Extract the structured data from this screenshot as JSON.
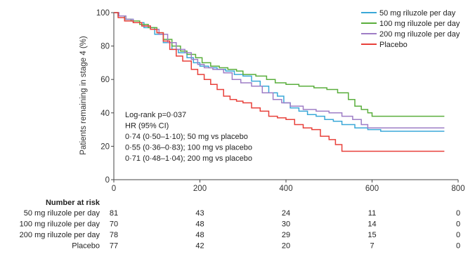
{
  "chart_data": {
    "type": "line",
    "step": true,
    "xlabel": "",
    "ylabel": "Patients remaining in stage 4 (%)",
    "xlim": [
      0,
      800
    ],
    "ylim": [
      0,
      100
    ],
    "xticks": [
      0,
      200,
      400,
      600,
      800
    ],
    "yticks": [
      0,
      20,
      40,
      60,
      80,
      100
    ],
    "legend_position": "top-right",
    "series": [
      {
        "name": "50 mg riluzole per day",
        "color": "#3aa8d8",
        "points": [
          [
            0,
            100
          ],
          [
            10,
            98
          ],
          [
            25,
            96
          ],
          [
            45,
            94
          ],
          [
            70,
            91
          ],
          [
            95,
            87
          ],
          [
            115,
            82
          ],
          [
            135,
            78
          ],
          [
            150,
            76
          ],
          [
            170,
            73
          ],
          [
            185,
            70
          ],
          [
            200,
            68
          ],
          [
            220,
            67
          ],
          [
            240,
            66
          ],
          [
            260,
            65
          ],
          [
            280,
            63
          ],
          [
            300,
            62
          ],
          [
            320,
            59
          ],
          [
            340,
            56
          ],
          [
            360,
            52
          ],
          [
            380,
            50
          ],
          [
            395,
            46
          ],
          [
            410,
            43
          ],
          [
            430,
            41
          ],
          [
            450,
            39
          ],
          [
            470,
            38
          ],
          [
            490,
            36
          ],
          [
            510,
            35
          ],
          [
            530,
            33
          ],
          [
            560,
            31
          ],
          [
            590,
            30
          ],
          [
            620,
            29
          ],
          [
            640,
            29
          ],
          [
            768,
            29
          ]
        ]
      },
      {
        "name": "100 mg riluzole per day",
        "color": "#5aae3c",
        "points": [
          [
            0,
            100
          ],
          [
            10,
            98
          ],
          [
            25,
            96
          ],
          [
            40,
            95
          ],
          [
            60,
            93
          ],
          [
            80,
            91
          ],
          [
            100,
            88
          ],
          [
            115,
            84
          ],
          [
            135,
            80
          ],
          [
            155,
            77
          ],
          [
            170,
            75
          ],
          [
            190,
            73
          ],
          [
            205,
            70
          ],
          [
            225,
            68
          ],
          [
            245,
            67
          ],
          [
            265,
            66
          ],
          [
            285,
            65
          ],
          [
            300,
            63
          ],
          [
            330,
            62
          ],
          [
            355,
            60
          ],
          [
            375,
            58
          ],
          [
            400,
            57
          ],
          [
            430,
            56
          ],
          [
            465,
            55
          ],
          [
            495,
            54
          ],
          [
            520,
            52
          ],
          [
            545,
            48
          ],
          [
            560,
            44
          ],
          [
            575,
            42
          ],
          [
            590,
            40
          ],
          [
            600,
            38
          ],
          [
            768,
            38
          ]
        ]
      },
      {
        "name": "200 mg riluzole per day",
        "color": "#9e7dc6",
        "points": [
          [
            0,
            100
          ],
          [
            12,
            98
          ],
          [
            28,
            96
          ],
          [
            45,
            94
          ],
          [
            65,
            92
          ],
          [
            85,
            90
          ],
          [
            105,
            87
          ],
          [
            125,
            82
          ],
          [
            145,
            78
          ],
          [
            165,
            76
          ],
          [
            180,
            72
          ],
          [
            195,
            69
          ],
          [
            210,
            67
          ],
          [
            230,
            66
          ],
          [
            255,
            64
          ],
          [
            275,
            60
          ],
          [
            295,
            58
          ],
          [
            320,
            56
          ],
          [
            345,
            52
          ],
          [
            370,
            48
          ],
          [
            390,
            46
          ],
          [
            410,
            44
          ],
          [
            440,
            42
          ],
          [
            470,
            41
          ],
          [
            500,
            40
          ],
          [
            530,
            38
          ],
          [
            555,
            36
          ],
          [
            575,
            33
          ],
          [
            590,
            31
          ],
          [
            768,
            31
          ]
        ]
      },
      {
        "name": "Placebo",
        "color": "#e8403a",
        "points": [
          [
            0,
            100
          ],
          [
            10,
            97
          ],
          [
            25,
            95
          ],
          [
            45,
            94
          ],
          [
            65,
            92
          ],
          [
            85,
            90
          ],
          [
            100,
            88
          ],
          [
            115,
            83
          ],
          [
            130,
            78
          ],
          [
            145,
            74
          ],
          [
            160,
            71
          ],
          [
            180,
            66
          ],
          [
            195,
            63
          ],
          [
            210,
            60
          ],
          [
            225,
            57
          ],
          [
            240,
            54
          ],
          [
            255,
            50
          ],
          [
            270,
            48
          ],
          [
            285,
            47
          ],
          [
            300,
            46
          ],
          [
            320,
            43
          ],
          [
            340,
            41
          ],
          [
            360,
            38
          ],
          [
            380,
            37
          ],
          [
            400,
            36
          ],
          [
            420,
            33
          ],
          [
            440,
            31
          ],
          [
            460,
            30
          ],
          [
            480,
            26
          ],
          [
            500,
            24
          ],
          [
            515,
            21
          ],
          [
            530,
            17
          ],
          [
            768,
            17
          ]
        ]
      }
    ],
    "annotations": [
      "Log-rank p=0·037",
      "HR (95% CI)",
      "0·74 (0·50–1·10); 50 mg vs placebo",
      "0·55 (0·36–0·83); 100 mg vs placebo",
      "0·71 (0·48–1·04); 200 mg vs placebo"
    ],
    "risk_table": {
      "title": "Number at risk",
      "times": [
        0,
        200,
        400,
        600,
        800
      ],
      "rows": [
        {
          "label": "50 mg riluzole per day",
          "values": [
            "81",
            "43",
            "24",
            "11",
            "0"
          ]
        },
        {
          "label": "100 mg riluzole per day",
          "values": [
            "70",
            "48",
            "30",
            "14",
            "0"
          ]
        },
        {
          "label": "200 mg riluzole per day",
          "values": [
            "78",
            "48",
            "29",
            "15",
            "0"
          ]
        },
        {
          "label": "Placebo",
          "values": [
            "77",
            "42",
            "20",
            "7",
            "0"
          ]
        }
      ]
    }
  }
}
